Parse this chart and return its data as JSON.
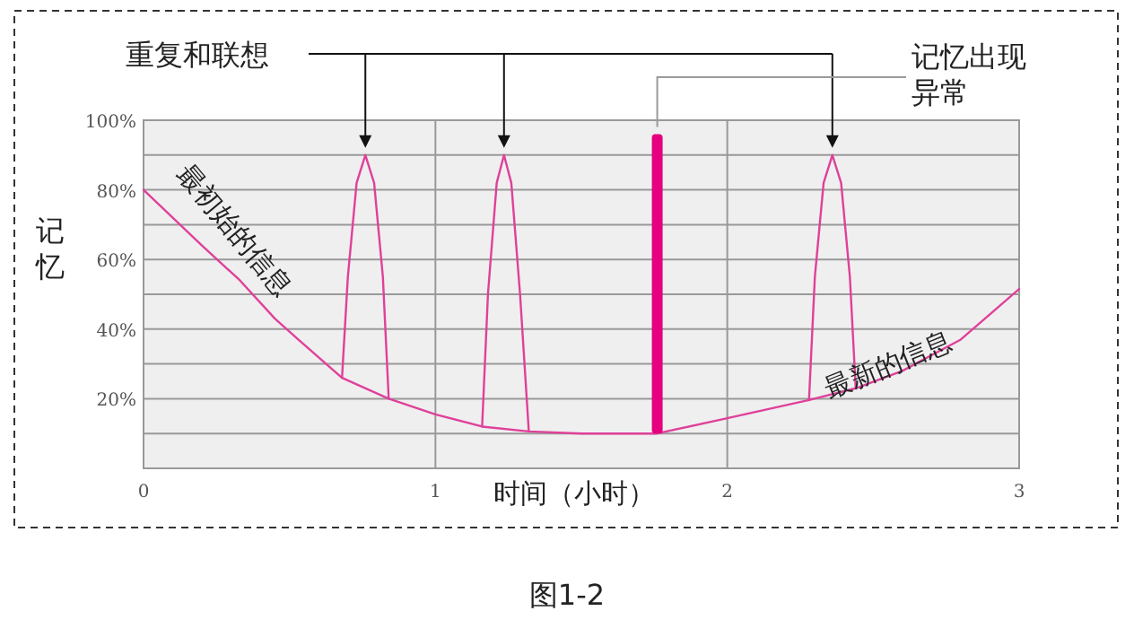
{
  "chart_data": {
    "type": "line",
    "xlabel": "时间（小时）",
    "ylabel": "记忆",
    "annotations": [
      "重复和联想",
      {
        "text": "记忆出现异常",
        "x": 1.76,
        "y": 96
      },
      "最初始的信息",
      "最新的信息",
      "图1-2"
    ],
    "series": [
      {
        "color": "#e0409a",
        "x": [
          0,
          0.1,
          0.2,
          0.33,
          0.45,
          0.53,
          0.68,
          0.84,
          1.0,
          1.16,
          1.32,
          1.5,
          1.76,
          2.0,
          2.28,
          2.44,
          2.6,
          2.8,
          3.0
        ],
        "values": [
          80,
          72,
          64,
          54,
          43,
          37,
          26,
          20,
          15.5,
          12,
          10.6,
          10,
          10,
          14.4,
          19.6,
          23,
          28,
          37,
          51.5
        ]
      },
      {
        "color": "#e0409a",
        "x": [
          0.68,
          0.7,
          0.73,
          0.76,
          0.79,
          0.82,
          0.84
        ],
        "values": [
          26,
          55,
          82,
          90,
          82,
          55,
          20
        ]
      },
      {
        "color": "#e0409a",
        "x": [
          1.16,
          1.18,
          1.21,
          1.235,
          1.26,
          1.29,
          1.32
        ],
        "values": [
          12,
          50,
          82,
          90,
          82,
          50,
          10.6
        ]
      },
      {
        "color": "#e0409a",
        "x": [
          2.28,
          2.3,
          2.33,
          2.36,
          2.39,
          2.42,
          2.44
        ],
        "values": [
          19.6,
          55,
          82,
          90,
          82,
          55,
          23
        ]
      },
      {
        "type": "bar",
        "color": "#e4007f",
        "x": [
          1.76
        ],
        "base": [
          10
        ],
        "values": [
          86
        ]
      }
    ],
    "xlim": [
      0,
      3
    ],
    "ylim": [
      0,
      100
    ],
    "xticks": [
      0,
      1,
      2,
      3
    ],
    "yticks": [
      {
        "value": 10,
        "label": null
      },
      {
        "value": 20,
        "label": "20%"
      },
      {
        "value": 30,
        "label": null
      },
      {
        "value": 40,
        "label": "40%"
      },
      {
        "value": 50,
        "label": null
      },
      {
        "value": 60,
        "label": "60%"
      },
      {
        "value": 70,
        "label": null
      },
      {
        "value": 80,
        "label": "80%"
      },
      {
        "value": 90,
        "label": null
      },
      {
        "value": 100,
        "label": "100%"
      }
    ],
    "grid": true
  }
}
